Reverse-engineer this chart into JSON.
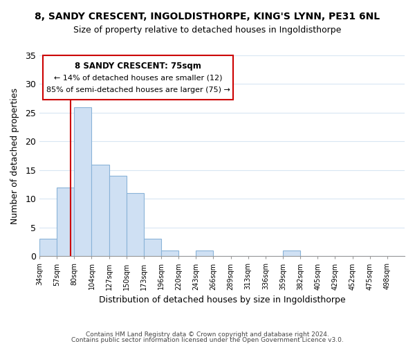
{
  "title": "8, SANDY CRESCENT, INGOLDISTHORPE, KING'S LYNN, PE31 6NL",
  "subtitle": "Size of property relative to detached houses in Ingoldisthorpe",
  "xlabel": "Distribution of detached houses by size in Ingoldisthorpe",
  "ylabel": "Number of detached properties",
  "footer_line1": "Contains HM Land Registry data © Crown copyright and database right 2024.",
  "footer_line2": "Contains public sector information licensed under the Open Government Licence v3.0.",
  "bin_labels": [
    "34sqm",
    "57sqm",
    "80sqm",
    "104sqm",
    "127sqm",
    "150sqm",
    "173sqm",
    "196sqm",
    "220sqm",
    "243sqm",
    "266sqm",
    "289sqm",
    "313sqm",
    "336sqm",
    "359sqm",
    "382sqm",
    "405sqm",
    "429sqm",
    "452sqm",
    "475sqm",
    "498sqm"
  ],
  "bar_heights": [
    3,
    12,
    26,
    16,
    14,
    11,
    3,
    1,
    0,
    1,
    0,
    0,
    0,
    0,
    1,
    0,
    0,
    0,
    0,
    0,
    0
  ],
  "bar_color": "#cfe0f3",
  "bar_edge_color": "#89b3d8",
  "subject_line_color": "#cc0000",
  "ylim": [
    0,
    35
  ],
  "yticks": [
    0,
    5,
    10,
    15,
    20,
    25,
    30,
    35
  ],
  "annotation_title": "8 SANDY CRESCENT: 75sqm",
  "annotation_line1": "← 14% of detached houses are smaller (12)",
  "annotation_line2": "85% of semi-detached houses are larger (75) →",
  "background_color": "#ffffff",
  "grid_color": "#d8e6f3"
}
